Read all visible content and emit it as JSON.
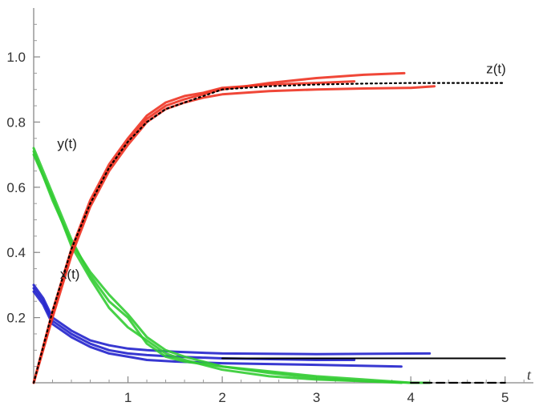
{
  "chart_data": {
    "type": "line",
    "title": "",
    "xlabel": "t",
    "ylabel": "",
    "xlim": [
      0,
      5.3
    ],
    "ylim": [
      0,
      1.15
    ],
    "x_ticks": [
      1,
      2,
      3,
      4,
      5
    ],
    "x_tick_labels": [
      "1",
      "2",
      "3",
      "4",
      "5"
    ],
    "y_ticks": [
      0.2,
      0.4,
      0.6,
      0.8,
      1.0
    ],
    "y_tick_labels": [
      "0.2",
      "0.4",
      "0.6",
      "0.8",
      "1.0"
    ],
    "grid": false,
    "colors": {
      "x": "#2222cc",
      "y": "#33cc33",
      "z": "#ee3322",
      "deterministic": "#000000"
    },
    "curve_labels": [
      {
        "text": "z(t)",
        "at": [
          4.8,
          0.95
        ]
      },
      {
        "text": "y(t)",
        "at": [
          0.25,
          0.72
        ]
      },
      {
        "text": "x(t)",
        "at": [
          0.28,
          0.32
        ]
      }
    ],
    "series": [
      {
        "key": "z1",
        "group": "z",
        "style": "solid",
        "x": [
          0,
          0.2,
          0.4,
          0.6,
          0.8,
          1.0,
          1.2,
          1.4,
          1.6,
          1.8,
          2.0,
          2.5,
          3.0,
          3.5,
          3.93
        ],
        "y": [
          0,
          0.21,
          0.4,
          0.55,
          0.66,
          0.74,
          0.81,
          0.85,
          0.87,
          0.885,
          0.9,
          0.92,
          0.935,
          0.945,
          0.95
        ]
      },
      {
        "key": "z2",
        "group": "z",
        "style": "solid",
        "x": [
          0,
          0.2,
          0.4,
          0.6,
          0.8,
          1.0,
          1.2,
          1.4,
          1.6,
          1.8,
          2.0,
          2.5,
          3.0,
          3.5,
          4.0,
          4.25
        ],
        "y": [
          0,
          0.2,
          0.39,
          0.54,
          0.65,
          0.73,
          0.8,
          0.84,
          0.86,
          0.875,
          0.885,
          0.895,
          0.9,
          0.903,
          0.905,
          0.91
        ]
      },
      {
        "key": "z3",
        "group": "z",
        "style": "solid",
        "x": [
          0,
          0.2,
          0.4,
          0.6,
          0.8,
          1.0,
          1.2,
          1.4,
          1.6,
          1.8,
          2.0,
          2.5,
          3.0,
          3.4
        ],
        "y": [
          0,
          0.22,
          0.41,
          0.56,
          0.67,
          0.75,
          0.82,
          0.86,
          0.88,
          0.89,
          0.905,
          0.915,
          0.92,
          0.925
        ]
      },
      {
        "key": "y1",
        "group": "y",
        "style": "solid",
        "x": [
          0,
          0.2,
          0.4,
          0.6,
          0.8,
          1.0,
          1.2,
          1.4,
          1.6,
          2.0,
          2.5,
          3.0,
          3.5,
          4.0,
          4.2
        ],
        "y": [
          0.7,
          0.57,
          0.42,
          0.32,
          0.23,
          0.17,
          0.13,
          0.09,
          0.07,
          0.04,
          0.02,
          0.01,
          0.005,
          0.0,
          0.0
        ]
      },
      {
        "key": "y2",
        "group": "y",
        "style": "solid",
        "x": [
          0,
          0.2,
          0.4,
          0.6,
          0.8,
          1.0,
          1.2,
          1.4,
          1.6,
          2.0,
          2.5,
          3.0,
          3.5,
          3.9
        ],
        "y": [
          0.72,
          0.58,
          0.44,
          0.33,
          0.25,
          0.2,
          0.12,
          0.08,
          0.065,
          0.05,
          0.03,
          0.015,
          0.005,
          0.0
        ]
      },
      {
        "key": "y3",
        "group": "y",
        "style": "solid",
        "x": [
          0,
          0.2,
          0.4,
          0.6,
          0.8,
          1.0,
          1.2,
          1.4,
          1.6,
          2.0,
          2.5,
          3.0,
          3.5,
          4.0
        ],
        "y": [
          0.71,
          0.56,
          0.43,
          0.34,
          0.27,
          0.21,
          0.14,
          0.1,
          0.08,
          0.05,
          0.035,
          0.02,
          0.01,
          0.0
        ]
      },
      {
        "key": "x1",
        "group": "x",
        "style": "solid",
        "x": [
          0,
          0.1,
          0.2,
          0.4,
          0.6,
          0.8,
          1.0,
          1.2,
          1.5,
          2.0,
          3.0,
          4.2
        ],
        "y": [
          0.3,
          0.26,
          0.2,
          0.16,
          0.13,
          0.115,
          0.105,
          0.1,
          0.095,
          0.09,
          0.088,
          0.09
        ]
      },
      {
        "key": "x2",
        "group": "x",
        "style": "solid",
        "x": [
          0,
          0.1,
          0.2,
          0.4,
          0.6,
          0.8,
          1.0,
          1.2,
          1.5,
          2.0,
          3.0,
          3.4
        ],
        "y": [
          0.29,
          0.25,
          0.19,
          0.15,
          0.12,
          0.1,
          0.09,
          0.085,
          0.08,
          0.075,
          0.07,
          0.07
        ]
      },
      {
        "key": "x3",
        "group": "x",
        "style": "solid",
        "x": [
          0,
          0.1,
          0.2,
          0.4,
          0.6,
          0.8,
          1.0,
          1.2,
          1.5,
          2.0,
          3.0,
          3.9
        ],
        "y": [
          0.28,
          0.24,
          0.18,
          0.14,
          0.11,
          0.09,
          0.08,
          0.07,
          0.065,
          0.06,
          0.055,
          0.05
        ]
      },
      {
        "key": "z_det",
        "group": "deterministic",
        "style": "dotted",
        "x": [
          0,
          0.2,
          0.4,
          0.6,
          0.8,
          1.0,
          1.2,
          1.4,
          1.6,
          1.8,
          2.0,
          2.5,
          3.0,
          3.5,
          4.0,
          4.5,
          5.0
        ],
        "y": [
          0,
          0.22,
          0.41,
          0.55,
          0.66,
          0.74,
          0.8,
          0.84,
          0.86,
          0.88,
          0.9,
          0.91,
          0.915,
          0.918,
          0.92,
          0.92,
          0.92
        ]
      },
      {
        "key": "y_det",
        "group": "deterministic",
        "style": "dashed",
        "x": [
          4.0,
          4.5,
          5.0
        ],
        "y": [
          0.0,
          0.0,
          0.0
        ]
      },
      {
        "key": "x_det",
        "group": "deterministic",
        "style": "solid",
        "x": [
          2.0,
          3.0,
          4.0,
          5.0
        ],
        "y": [
          0.075,
          0.075,
          0.075,
          0.075
        ]
      }
    ]
  }
}
